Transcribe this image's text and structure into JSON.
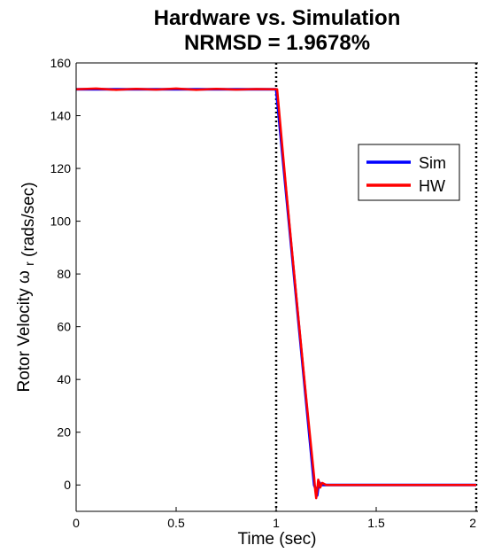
{
  "chart_data": {
    "type": "line",
    "title": "Hardware vs. Simulation",
    "subtitle": "NRMSD = 1.9678%",
    "xlabel": "Time (sec)",
    "ylabel_main": "Rotor Velocity",
    "ylabel_symbol": "ω",
    "ylabel_subscript": "r",
    "ylabel_units": "(rads/sec)",
    "xlim": [
      0,
      2
    ],
    "ylim": [
      -10,
      160
    ],
    "x_ticks": [
      0,
      0.5,
      1,
      1.5,
      2
    ],
    "x_tick_labels": [
      "0",
      "0.5",
      "1",
      "1.5",
      "2"
    ],
    "y_ticks": [
      0,
      20,
      40,
      60,
      80,
      100,
      120,
      140,
      160
    ],
    "y_tick_labels": [
      "0",
      "20",
      "40",
      "60",
      "80",
      "100",
      "120",
      "140",
      "160"
    ],
    "grid": false,
    "legend_position": "top-right",
    "vertical_markers": [
      1,
      2
    ],
    "series": [
      {
        "name": "Sim",
        "color": "#0000ff",
        "x": [
          0,
          1.0,
          1.19,
          1.2,
          1.205,
          1.21,
          1.215,
          1.22,
          1.23,
          2.0
        ],
        "y": [
          150,
          150,
          0,
          -2,
          -4,
          -1,
          1,
          0.5,
          0,
          0
        ]
      },
      {
        "name": "HW",
        "color": "#ff0000",
        "x": [
          0,
          0.1,
          0.2,
          0.3,
          0.4,
          0.5,
          0.6,
          0.7,
          0.8,
          0.9,
          1.0,
          1.005,
          1.05,
          1.1,
          1.15,
          1.19,
          1.195,
          1.2,
          1.205,
          1.21,
          1.215,
          1.22,
          1.23,
          1.25,
          1.3,
          2.0
        ],
        "y": [
          150,
          150.3,
          149.8,
          150.2,
          149.9,
          150.3,
          149.8,
          150.2,
          149.9,
          150.1,
          150,
          150,
          112,
          72,
          33,
          3,
          -2,
          -5,
          -2,
          2,
          1,
          -1,
          0.8,
          0,
          0,
          0
        ]
      }
    ]
  }
}
